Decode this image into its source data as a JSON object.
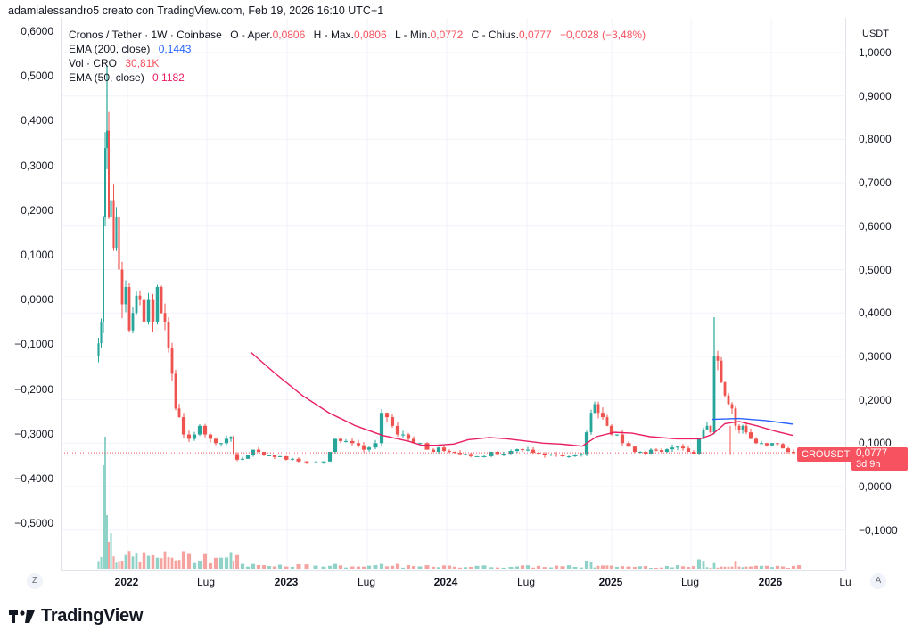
{
  "header": {
    "credit": "adamialessandro5 creato con TradingView.com, Feb 19, 2026 16:10 UTC+1"
  },
  "legend": {
    "symbol": "Cronos / Tether · 1W · Coinbase",
    "open_label": "O - Aper.",
    "open": "0,0806",
    "high_label": "H - Max.",
    "high": "0,0806",
    "low_label": "L - Min.",
    "low": "0,0772",
    "close_label": "C - Chius.",
    "close": "0,0777",
    "change": "−0,0028 (−3,48%)",
    "ema200_label": "EMA (200, close)",
    "ema200_value": "0,1443",
    "vol_label": "Vol · CRO",
    "vol_value": "30,81K",
    "ema50_label": "EMA (50, close)",
    "ema50_value": "0,1182"
  },
  "right_axis": {
    "unit": "USDT",
    "labels": [
      "1,0000",
      "0,9000",
      "0,8000",
      "0,7000",
      "0,6000",
      "0,5000",
      "0,4000",
      "0,3000",
      "0,2000",
      "0,1000",
      "0,0000",
      "−0,1000"
    ]
  },
  "left_axis": {
    "labels": [
      "0,6000",
      "0,5000",
      "0,4000",
      "0,3000",
      "0,2000",
      "0,1000",
      "0,0000",
      "−0,1000",
      "−0,2000",
      "−0,3000",
      "−0,4000",
      "−0,5000"
    ]
  },
  "time_axis": {
    "labels": [
      {
        "text": "2022",
        "year": true
      },
      {
        "text": "Lug",
        "year": false
      },
      {
        "text": "2023",
        "year": true
      },
      {
        "text": "Lug",
        "year": false
      },
      {
        "text": "2024",
        "year": true
      },
      {
        "text": "Lug",
        "year": false
      },
      {
        "text": "2025",
        "year": true
      },
      {
        "text": "Lug",
        "year": false
      },
      {
        "text": "2026",
        "year": true
      },
      {
        "text": "Lu",
        "year": false
      }
    ]
  },
  "price_tag": {
    "symbol": "CROUSDT",
    "price": "0,0777",
    "countdown": "3d 9h"
  },
  "corner_buttons": {
    "left": "Z",
    "right": "A"
  },
  "logo": {
    "text": "TradingView"
  },
  "colors": {
    "up": "#26a69a",
    "down": "#ef5350",
    "up_vol": "#8fd3c8",
    "down_vol": "#f5a3a0",
    "ema200": "#2962ff",
    "ema50": "#e91e63",
    "price_line": "#f7525f",
    "grid": "#f0f3fa"
  },
  "chart_data": {
    "type": "candlestick",
    "title": "Cronos / Tether · 1W · Coinbase",
    "ylabel": "USDT",
    "ylim": [
      -0.18,
      1.05
    ],
    "x_ticks": [
      "2022",
      "Lug",
      "2023",
      "Lug",
      "2024",
      "Lug",
      "2025",
      "Lug",
      "2026",
      "Lu"
    ],
    "last": {
      "open": 0.0806,
      "high": 0.0806,
      "low": 0.0772,
      "close": 0.0777,
      "change": -0.0028,
      "change_pct": -3.48
    },
    "indicators": {
      "ema200": 0.1443,
      "ema50": 0.1182,
      "volume": "30,81K"
    },
    "price_segments": [
      {
        "from": "2021-11",
        "to": "2021-12",
        "range": [
          0.28,
          0.92
        ],
        "note": "spike to ~0.97 high"
      },
      {
        "from": "2022-01",
        "to": "2022-05",
        "range": [
          0.4,
          0.75
        ]
      },
      {
        "from": "2022-05",
        "to": "2022-08",
        "range": [
          0.11,
          0.46
        ]
      },
      {
        "from": "2022-08",
        "to": "2022-11",
        "range": [
          0.1,
          0.14
        ]
      },
      {
        "from": "2022-11",
        "to": "2023-10",
        "range": [
          0.05,
          0.085
        ]
      },
      {
        "from": "2023-11",
        "to": "2024-02",
        "range": [
          0.08,
          0.1
        ]
      },
      {
        "from": "2024-03",
        "to": "2024-06",
        "range": [
          0.08,
          0.18
        ]
      },
      {
        "from": "2024-06",
        "to": "2024-11",
        "range": [
          0.075,
          0.1
        ]
      },
      {
        "from": "2024-11",
        "to": "2025-01",
        "range": [
          0.09,
          0.22
        ]
      },
      {
        "from": "2025-02",
        "to": "2025-07",
        "range": [
          0.07,
          0.12
        ]
      },
      {
        "from": "2025-08",
        "to": "2025-10",
        "range": [
          0.1,
          0.39
        ]
      },
      {
        "from": "2025-10",
        "to": "2026-02",
        "range": [
          0.077,
          0.2
        ]
      }
    ]
  }
}
